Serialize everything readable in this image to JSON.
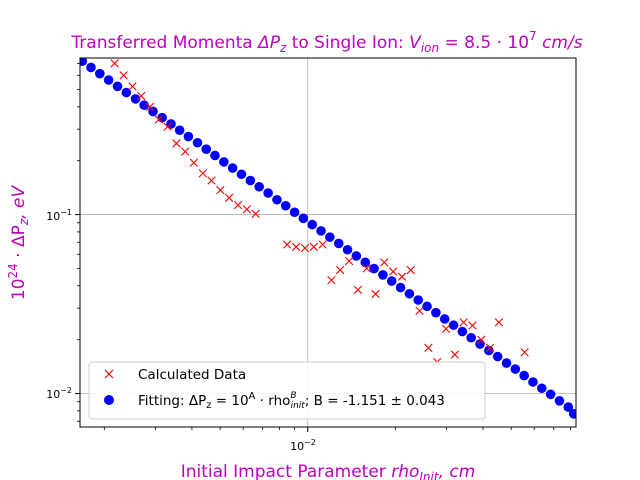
{
  "chart_data": {
    "type": "scatter",
    "title": "Transferred Momenta ΔP_z to Single Ion: V_ion = 8.5·10^7 cm/s",
    "xlabel": "Initial Impact Parameter rho_Init, cm",
    "ylabel": "10^24·ΔP_z, eV",
    "xscale": "log",
    "yscale": "log",
    "xlim": [
      0.00165,
      0.0835
    ],
    "ylim": [
      0.0065,
      0.75
    ],
    "grid": true,
    "legend_position": "lower-left",
    "x_ticks": [
      {
        "value": 0.01,
        "label": "10^-2"
      }
    ],
    "y_ticks": [
      {
        "value": 0.01,
        "label": "10^-2"
      },
      {
        "value": 0.1,
        "label": "10^-1"
      }
    ],
    "series": [
      {
        "name": "Calculated Data",
        "marker": "x",
        "color": "#ff0000",
        "points": [
          [
            0.00217,
            0.7
          ],
          [
            0.00233,
            0.6
          ],
          [
            0.0025,
            0.52
          ],
          [
            0.00268,
            0.46
          ],
          [
            0.00287,
            0.4
          ],
          [
            0.00308,
            0.34
          ],
          [
            0.0033,
            0.31
          ],
          [
            0.00354,
            0.25
          ],
          [
            0.00379,
            0.225
          ],
          [
            0.00406,
            0.195
          ],
          [
            0.00436,
            0.17
          ],
          [
            0.00467,
            0.155
          ],
          [
            0.00501,
            0.137
          ],
          [
            0.00537,
            0.124
          ],
          [
            0.00576,
            0.113
          ],
          [
            0.00618,
            0.107
          ],
          [
            0.00662,
            0.101
          ],
          [
            0.0085,
            0.068
          ],
          [
            0.00912,
            0.066
          ],
          [
            0.00978,
            0.065
          ],
          [
            0.01049,
            0.066
          ],
          [
            0.01125,
            0.068
          ],
          [
            0.01206,
            0.043
          ],
          [
            0.01293,
            0.049
          ],
          [
            0.01387,
            0.055
          ],
          [
            0.01487,
            0.038
          ],
          [
            0.01594,
            0.05
          ],
          [
            0.01709,
            0.036
          ],
          [
            0.01833,
            0.054
          ],
          [
            0.01965,
            0.048
          ],
          [
            0.02107,
            0.045
          ],
          [
            0.02259,
            0.049
          ],
          [
            0.02422,
            0.029
          ],
          [
            0.02597,
            0.018
          ],
          [
            0.02785,
            0.015
          ],
          [
            0.02986,
            0.023
          ],
          [
            0.03202,
            0.0165
          ],
          [
            0.03433,
            0.025
          ],
          [
            0.03681,
            0.024
          ],
          [
            0.03947,
            0.02
          ],
          [
            0.04232,
            0.018
          ],
          [
            0.04538,
            0.025
          ],
          [
            0.05561,
            0.017
          ]
        ]
      },
      {
        "name": "Fitting: ΔP_z = 10^A · rho^B_init; B = -1.151 ± 0.043",
        "marker": "o",
        "color": "#0000ff",
        "fit": {
          "B": -1.151,
          "B_err": 0.043
        },
        "points": [
          [
            0.00168,
            0.72
          ],
          [
            0.0018,
            0.664
          ],
          [
            0.00193,
            0.613
          ],
          [
            0.00207,
            0.565
          ],
          [
            0.00222,
            0.521
          ],
          [
            0.00238,
            0.481
          ],
          [
            0.00256,
            0.443
          ],
          [
            0.00274,
            0.409
          ],
          [
            0.00294,
            0.377
          ],
          [
            0.00316,
            0.348
          ],
          [
            0.00339,
            0.321
          ],
          [
            0.00363,
            0.296
          ],
          [
            0.00389,
            0.273
          ],
          [
            0.00418,
            0.252
          ],
          [
            0.00448,
            0.232
          ],
          [
            0.0048,
            0.214
          ],
          [
            0.00515,
            0.197
          ],
          [
            0.00552,
            0.182
          ],
          [
            0.00592,
            0.168
          ],
          [
            0.00635,
            0.155
          ],
          [
            0.00681,
            0.143
          ],
          [
            0.00731,
            0.132
          ],
          [
            0.00784,
            0.121
          ],
          [
            0.0084,
            0.112
          ],
          [
            0.00901,
            0.103
          ],
          [
            0.00966,
            0.0953
          ],
          [
            0.01036,
            0.0879
          ],
          [
            0.01111,
            0.0811
          ],
          [
            0.01191,
            0.0748
          ],
          [
            0.01278,
            0.069
          ],
          [
            0.0137,
            0.0636
          ],
          [
            0.01469,
            0.0587
          ],
          [
            0.01576,
            0.0541
          ],
          [
            0.0169,
            0.0499
          ],
          [
            0.01812,
            0.046
          ],
          [
            0.01943,
            0.0425
          ],
          [
            0.02084,
            0.0391
          ],
          [
            0.02235,
            0.0361
          ],
          [
            0.02396,
            0.0333
          ],
          [
            0.0257,
            0.0307
          ],
          [
            0.02756,
            0.0283
          ],
          [
            0.02955,
            0.0261
          ],
          [
            0.03169,
            0.0241
          ],
          [
            0.03398,
            0.0222
          ],
          [
            0.03644,
            0.0205
          ],
          [
            0.03907,
            0.0189
          ],
          [
            0.0419,
            0.0174
          ],
          [
            0.04493,
            0.0161
          ],
          [
            0.04818,
            0.0148
          ],
          [
            0.05167,
            0.0137
          ],
          [
            0.0554,
            0.0126
          ],
          [
            0.05941,
            0.0116
          ],
          [
            0.06371,
            0.0107
          ],
          [
            0.06832,
            0.0099
          ],
          [
            0.07326,
            0.0091
          ],
          [
            0.07856,
            0.0084
          ],
          [
            0.082,
            0.0077
          ]
        ]
      }
    ]
  },
  "text": {
    "title_prefix": "Transferred Momenta ",
    "title_delta": "ΔP",
    "title_sub": "z",
    "title_mid": " to Single Ion: ",
    "title_v": "V",
    "title_v_sub": "ion",
    "title_eq": " = 8.5 · 10",
    "title_exp": "7",
    "title_units": " cm/s",
    "xlabel_prefix": "Initial Impact Parameter ",
    "xlabel_rho": "rho",
    "xlabel_sub": "Init",
    "xlabel_units": ", cm",
    "ylabel_base": "10",
    "ylabel_exp": "24",
    "ylabel_mid": " · ΔP",
    "ylabel_sub": "z",
    "ylabel_units": ", eV",
    "tick_base": "10",
    "tick_exp_x": "−2",
    "tick_exp_y1": "−1",
    "tick_exp_y2": "−2",
    "legend_calc": "Calculated Data",
    "legend_fit_1": "Fitting: ΔP",
    "legend_fit_z": "z",
    "legend_fit_2": " = 10",
    "legend_fit_A": "A",
    "legend_fit_3": " · rho",
    "legend_fit_B": "B",
    "legend_fit_init": "init",
    "legend_fit_4": "; B = -1.151 ± 0.043"
  },
  "colors": {
    "title": "#bf00bf",
    "calculated": "#ff0000",
    "fitting": "#0000ff",
    "grid": "#b0b0b0"
  }
}
